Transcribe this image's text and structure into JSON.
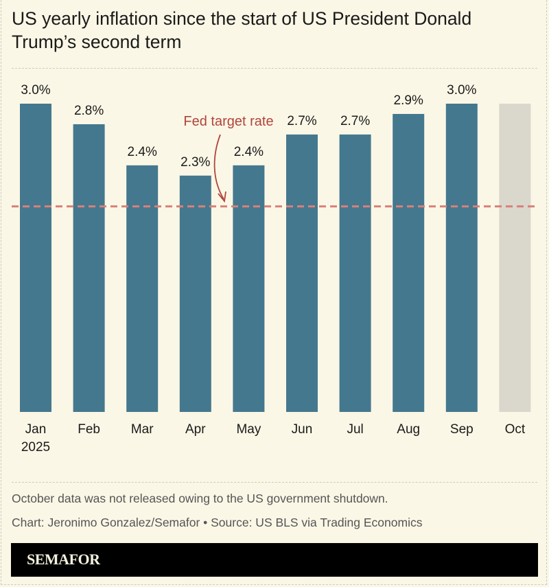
{
  "title": "US yearly inflation since the start of US President Donald Trump’s second term",
  "chart_data": {
    "type": "bar",
    "categories": [
      "Jan",
      "Feb",
      "Mar",
      "Apr",
      "May",
      "Jun",
      "Jul",
      "Aug",
      "Sep",
      "Oct"
    ],
    "category_sublabels": {
      "Jan": "2025"
    },
    "values": [
      3.0,
      2.8,
      2.4,
      2.3,
      2.4,
      2.7,
      2.7,
      2.9,
      3.0,
      null
    ],
    "data_labels": [
      "3.0%",
      "2.8%",
      "2.4%",
      "2.3%",
      "2.4%",
      "2.7%",
      "2.7%",
      "2.9%",
      "3.0%",
      ""
    ],
    "missing_placeholder": {
      "category": "Oct",
      "color": "#dad8cc"
    },
    "reference_line": {
      "value": 2.0,
      "label": "Fed target rate",
      "color": "#d9807a",
      "label_color": "#b0443c",
      "style": "dashed"
    },
    "ylim": [
      0,
      3.0
    ],
    "grid": false,
    "bar_color": "#44788e",
    "xlabel": "",
    "ylabel": ""
  },
  "footnote": "October data was not released owing to the US government shutdown.",
  "credit": "Chart: Jeronimo Gonzalez/Semafor • Source: US BLS via Trading Economics",
  "brand": "SEMAFOR",
  "colors": {
    "background": "#fbf7e6"
  }
}
